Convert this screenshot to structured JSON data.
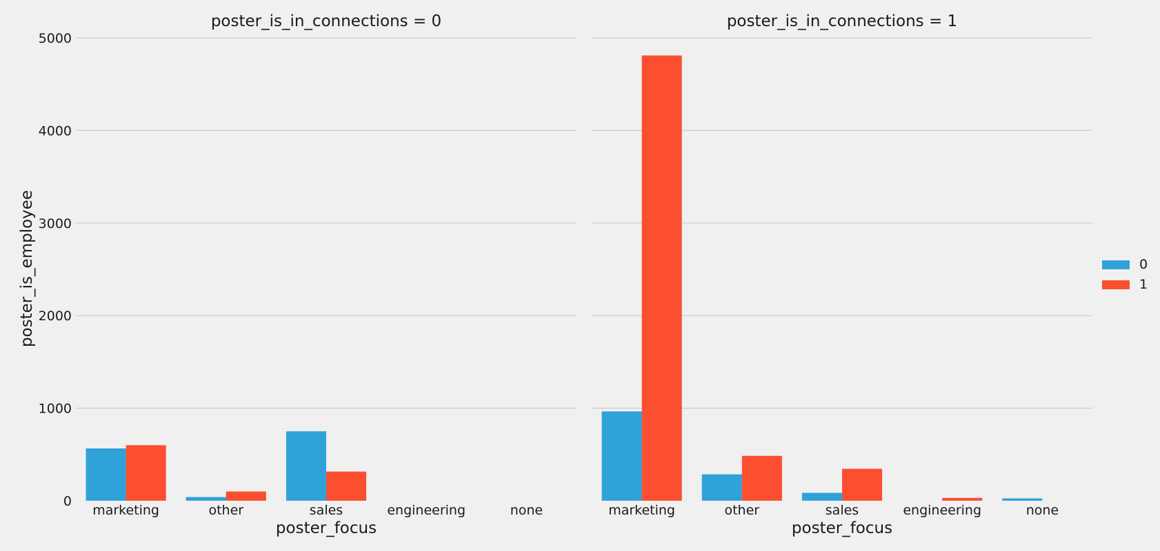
{
  "chart_data": {
    "type": "bar",
    "categories": [
      "marketing",
      "other",
      "sales",
      "engineering",
      "none"
    ],
    "xlabel": "poster_focus",
    "ylabel": "poster_is_employee",
    "ylim": [
      0,
      5000
    ],
    "yticks": [
      0,
      1000,
      2000,
      3000,
      4000,
      5000
    ],
    "ytick_labels": [
      "0",
      "1000",
      "2000",
      "3000",
      "4000",
      "5000"
    ],
    "grid": true,
    "legend_position": "right",
    "legend": [
      {
        "label": "0",
        "color": "#30a2da"
      },
      {
        "label": "1",
        "color": "#fc4f30"
      }
    ],
    "panels": [
      {
        "title": "poster_is_in_connections = 0",
        "series": [
          {
            "color": "#30a2da",
            "values": [
              565,
              40,
              750,
              0,
              0
            ]
          },
          {
            "color": "#fc4f30",
            "values": [
              600,
              100,
              315,
              0,
              0
            ]
          }
        ]
      },
      {
        "title": "poster_is_in_connections = 1",
        "series": [
          {
            "color": "#30a2da",
            "values": [
              965,
              285,
              85,
              0,
              25
            ]
          },
          {
            "color": "#fc4f30",
            "values": [
              4810,
              485,
              345,
              30,
              0
            ]
          }
        ]
      }
    ]
  }
}
